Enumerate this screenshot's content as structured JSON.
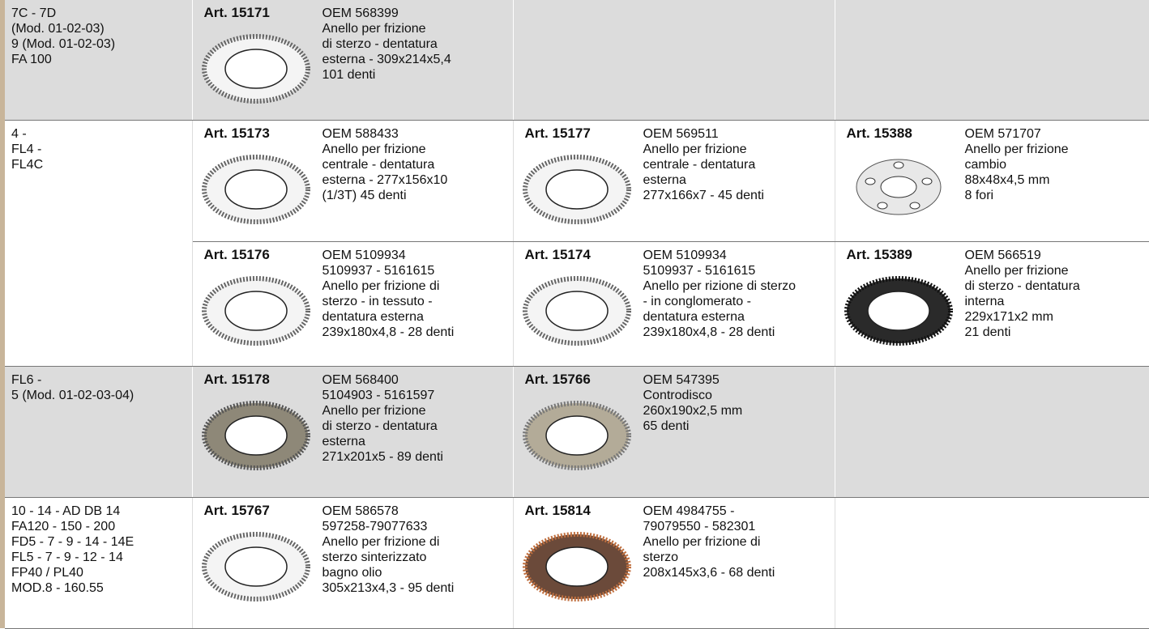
{
  "rows": [
    {
      "models": [
        "7C - 7D",
        "(Mod. 01-02-03)",
        "9 (Mod. 01-02-03)",
        "FA 100"
      ],
      "items": [
        {
          "art": "Art. 15171",
          "lines": [
            "OEM 568399",
            "Anello per frizione",
            "di sterzo - dentatura",
            "esterna - 309x214x5,4",
            "101 denti"
          ]
        }
      ]
    },
    {
      "models": [
        "4 -",
        "FL4 -",
        "FL4C"
      ],
      "items": [
        {
          "art": "Art. 15173",
          "lines": [
            "OEM 588433",
            "Anello per frizione",
            "centrale - dentatura",
            "esterna - 277x156x10",
            "(1/3T) 45 denti"
          ]
        },
        {
          "art": "Art. 15177",
          "lines": [
            "OEM 569511",
            "Anello per frizione",
            "centrale - dentatura",
            "esterna",
            "277x166x7 - 45 denti"
          ]
        },
        {
          "art": "Art. 15388",
          "lines": [
            "OEM 571707",
            "Anello per frizione",
            "cambio",
            "88x48x4,5 mm",
            "8 fori"
          ]
        }
      ]
    },
    {
      "items": [
        {
          "art": "Art. 15176",
          "lines": [
            "OEM 5109934",
            "5109937 - 5161615",
            "Anello per frizione di",
            "sterzo - in tessuto -",
            "dentatura esterna",
            "239x180x4,8 - 28 denti"
          ]
        },
        {
          "art": "Art. 15174",
          "lines": [
            "OEM 5109934",
            "5109937 - 5161615",
            "Anello per rizione di sterzo",
            "- in conglomerato -",
            "dentatura esterna",
            "239x180x4,8 - 28 denti"
          ]
        },
        {
          "art": "Art. 15389",
          "lines": [
            "OEM 566519",
            "Anello per frizione",
            "di sterzo - dentatura",
            "interna",
            "229x171x2 mm",
            "21 denti"
          ]
        }
      ]
    },
    {
      "models": [
        "FL6 -",
        "5 (Mod. 01-02-03-04)"
      ],
      "items": [
        {
          "art": "Art. 15178",
          "lines": [
            "OEM 568400",
            "5104903 - 5161597",
            "Anello per frizione",
            "di sterzo - dentatura",
            "esterna",
            "271x201x5 - 89 denti"
          ]
        },
        {
          "art": "Art. 15766",
          "lines": [
            "OEM 547395",
            "Controdisco",
            "260x190x2,5 mm",
            "65 denti"
          ]
        }
      ]
    },
    {
      "models": [
        "10 - 14 - AD DB 14",
        "FA120 - 150 - 200",
        "FD5 - 7 - 9 - 14 - 14E",
        "FL5 - 7 - 9 - 12 - 14",
        "FP40 / PL40",
        "MOD.8 - 160.55"
      ],
      "items": [
        {
          "art": "Art. 15767",
          "lines": [
            "OEM 586578",
            "597258-79077633",
            "Anello per frizione di",
            "sterzo sinterizzato",
            "bagno olio",
            "305x213x4,3 - 95 denti"
          ]
        },
        {
          "art": "Art. 15814",
          "lines": [
            "OEM 4984755 -",
            "79079550 - 582301",
            "Anello per frizione di",
            "sterzo",
            "208x145x3,6 - 68 denti"
          ]
        }
      ]
    }
  ]
}
